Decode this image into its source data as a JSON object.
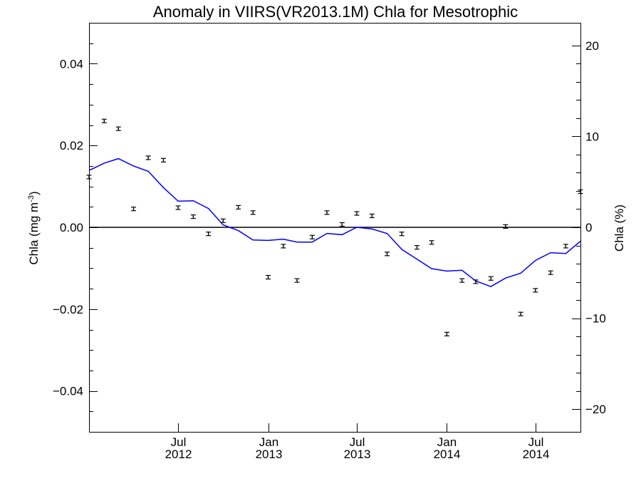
{
  "chart_data": {
    "type": "line",
    "title": "Anomaly in VIIRS(VR2013.1M) Chla for Mesotrophic",
    "ylabel_left_main": "Chla (mg m",
    "ylabel_left_exp": "-3",
    "ylabel_left_close": ")",
    "ylabel_right": "Chla (%)",
    "ylim_left": [
      -0.05,
      0.05
    ],
    "ylim_right": [
      -22.5,
      22.5
    ],
    "xlim": [
      "2012-01-01",
      "2014-10-01"
    ],
    "left_major_ticks": [
      {
        "value": 0.04,
        "label": "0.04"
      },
      {
        "value": 0.02,
        "label": "0.02"
      },
      {
        "value": 0.0,
        "label": "0.00"
      },
      {
        "value": -0.02,
        "label": "−0.02"
      },
      {
        "value": -0.04,
        "label": "−0.04"
      }
    ],
    "right_major_ticks": [
      {
        "value": 20,
        "label": "20"
      },
      {
        "value": 10,
        "label": "10"
      },
      {
        "value": 0,
        "label": "0"
      },
      {
        "value": -10,
        "label": "−10"
      },
      {
        "value": -20,
        "label": "−20"
      }
    ],
    "x_ticks": [
      {
        "date": "2012-07-01",
        "month": "Jul",
        "year": "2012"
      },
      {
        "date": "2013-01-01",
        "month": "Jan",
        "year": "2013"
      },
      {
        "date": "2013-07-01",
        "month": "Jul",
        "year": "2013"
      },
      {
        "date": "2014-01-01",
        "month": "Jan",
        "year": "2014"
      },
      {
        "date": "2014-07-01",
        "month": "Jul",
        "year": "2014"
      }
    ],
    "zero_line": 0,
    "series": [
      {
        "kind": "points-with-error-bars",
        "color": "#000000",
        "points": [
          {
            "date": "2012-01-01",
            "y": 0.0123
          },
          {
            "date": "2012-02-01",
            "y": 0.026
          },
          {
            "date": "2012-03-01",
            "y": 0.0241
          },
          {
            "date": "2012-04-01",
            "y": 0.0045
          },
          {
            "date": "2012-05-01",
            "y": 0.017
          },
          {
            "date": "2012-06-01",
            "y": 0.0164
          },
          {
            "date": "2012-07-01",
            "y": 0.0048
          },
          {
            "date": "2012-08-01",
            "y": 0.0026
          },
          {
            "date": "2012-09-01",
            "y": -0.0016
          },
          {
            "date": "2012-10-01",
            "y": 0.0016
          },
          {
            "date": "2012-11-01",
            "y": 0.0049
          },
          {
            "date": "2012-12-01",
            "y": 0.0036
          },
          {
            "date": "2013-01-01",
            "y": -0.0122
          },
          {
            "date": "2013-02-01",
            "y": -0.0046
          },
          {
            "date": "2013-03-01",
            "y": -0.013
          },
          {
            "date": "2013-04-01",
            "y": -0.0024
          },
          {
            "date": "2013-05-01",
            "y": 0.0036
          },
          {
            "date": "2013-06-01",
            "y": 0.0007
          },
          {
            "date": "2013-07-01",
            "y": 0.0034
          },
          {
            "date": "2013-08-01",
            "y": 0.0028
          },
          {
            "date": "2013-09-01",
            "y": -0.0065
          },
          {
            "date": "2013-10-01",
            "y": -0.0016
          },
          {
            "date": "2013-11-01",
            "y": -0.0049
          },
          {
            "date": "2013-12-01",
            "y": -0.0037
          },
          {
            "date": "2014-01-01",
            "y": -0.0261
          },
          {
            "date": "2014-02-01",
            "y": -0.013
          },
          {
            "date": "2014-03-01",
            "y": -0.0133
          },
          {
            "date": "2014-04-01",
            "y": -0.0125
          },
          {
            "date": "2014-05-01",
            "y": 0.0002
          },
          {
            "date": "2014-06-01",
            "y": -0.0212
          },
          {
            "date": "2014-07-01",
            "y": -0.0154
          },
          {
            "date": "2014-08-01",
            "y": -0.0111
          },
          {
            "date": "2014-09-01",
            "y": -0.0046
          },
          {
            "date": "2014-10-01",
            "y": 0.0087
          }
        ]
      },
      {
        "kind": "line",
        "color": "#0000ff",
        "points": [
          {
            "date": "2012-01-01",
            "y": 0.0139
          },
          {
            "date": "2012-02-01",
            "y": 0.0157
          },
          {
            "date": "2012-03-01",
            "y": 0.0168
          },
          {
            "date": "2012-04-01",
            "y": 0.015
          },
          {
            "date": "2012-05-01",
            "y": 0.0137
          },
          {
            "date": "2012-06-01",
            "y": 0.0097
          },
          {
            "date": "2012-07-01",
            "y": 0.0064
          },
          {
            "date": "2012-08-01",
            "y": 0.0065
          },
          {
            "date": "2012-09-01",
            "y": 0.0046
          },
          {
            "date": "2012-10-01",
            "y": 0.0006
          },
          {
            "date": "2012-11-01",
            "y": -0.0008
          },
          {
            "date": "2012-12-01",
            "y": -0.0031
          },
          {
            "date": "2013-01-01",
            "y": -0.0032
          },
          {
            "date": "2013-02-01",
            "y": -0.0029
          },
          {
            "date": "2013-03-01",
            "y": -0.0036
          },
          {
            "date": "2013-04-01",
            "y": -0.0036
          },
          {
            "date": "2013-05-01",
            "y": -0.0015
          },
          {
            "date": "2013-06-01",
            "y": -0.0018
          },
          {
            "date": "2013-07-01",
            "y": 0.0
          },
          {
            "date": "2013-08-01",
            "y": -0.0004
          },
          {
            "date": "2013-09-01",
            "y": -0.0015
          },
          {
            "date": "2013-10-01",
            "y": -0.0054
          },
          {
            "date": "2013-11-01",
            "y": -0.0078
          },
          {
            "date": "2013-12-01",
            "y": -0.0101
          },
          {
            "date": "2014-01-01",
            "y": -0.0107
          },
          {
            "date": "2014-02-01",
            "y": -0.0105
          },
          {
            "date": "2014-03-01",
            "y": -0.0131
          },
          {
            "date": "2014-04-01",
            "y": -0.0145
          },
          {
            "date": "2014-05-01",
            "y": -0.0124
          },
          {
            "date": "2014-06-01",
            "y": -0.0112
          },
          {
            "date": "2014-07-01",
            "y": -0.0081
          },
          {
            "date": "2014-08-01",
            "y": -0.0062
          },
          {
            "date": "2014-09-01",
            "y": -0.0064
          },
          {
            "date": "2014-10-01",
            "y": -0.0034
          }
        ]
      }
    ]
  }
}
